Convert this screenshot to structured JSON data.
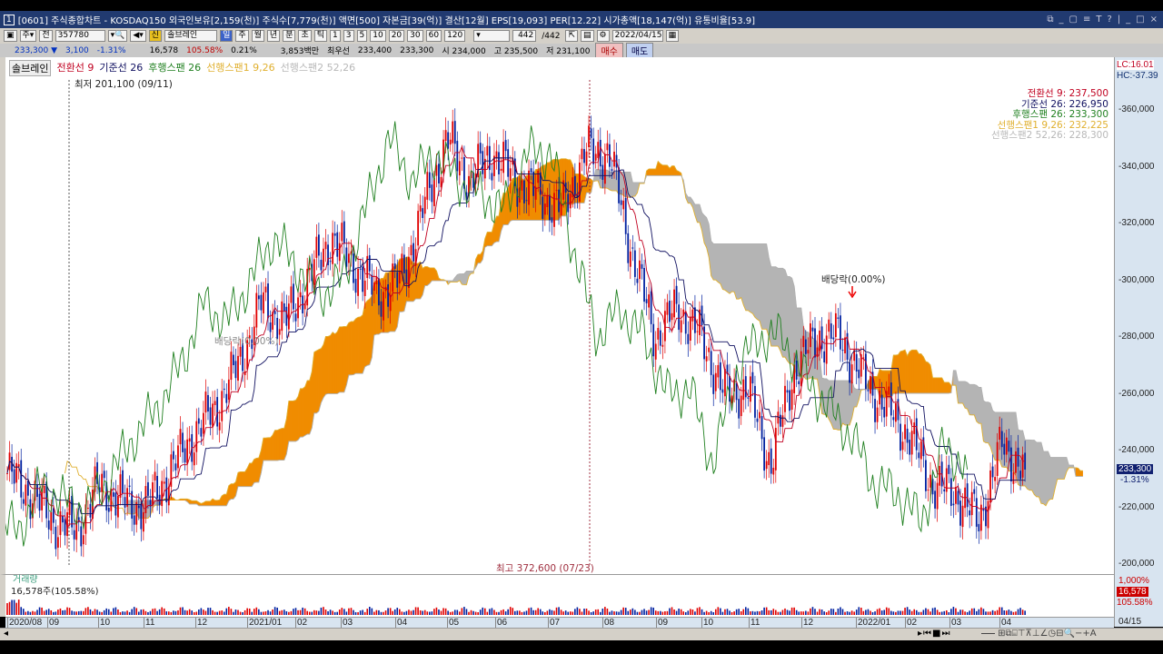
{
  "window": {
    "num": "1",
    "title": "[0601] 주식종합차트 - KOSDAQ150 외국인보유[2,159(천)] 주식수[7,779(천)] 액면[500] 자본금[39(억)] 결산[12월] EPS[19,093] PER[12.22] 시가총액[18,147(억)] 유통비율[53.9]",
    "controls": [
      "⧉",
      "_",
      "▢",
      "≡",
      "T",
      "?",
      "|",
      "_",
      "□",
      "×"
    ]
  },
  "toolbar": {
    "code": "357780",
    "indicator": "솔브레인",
    "periods": [
      "일",
      "주",
      "월",
      "년",
      "분",
      "초",
      "틱"
    ],
    "nums": [
      "1",
      "3",
      "5",
      "10",
      "20",
      "30",
      "60",
      "120"
    ],
    "count": "442",
    "total": "/442",
    "date": "2022/04/15"
  },
  "quote": {
    "price": "233,300 ▼",
    "change": "3,100",
    "pct": "-1.31%",
    "volume": "16,578",
    "vol_pct": "105.58%",
    "turnover": "0.21%",
    "amount": "3,853백만",
    "best_label": "최우선",
    "best_ask": "233,400",
    "best_bid": "233,300",
    "open": "시 234,000",
    "high": "고 235,500",
    "low": "저 231,100",
    "buy": "매수",
    "sell": "매도"
  },
  "legend": {
    "name": "솔브레인",
    "conv": "전환선 9",
    "base": "기준선 26",
    "lag": "후행스팬 26",
    "spanA": "선행스팬1 9,26",
    "spanB": "선행스팬2 52,26"
  },
  "values": {
    "conv": "전환선 9: 237,500",
    "base": "기준선 26: 226,950",
    "lag": "후행스팬 26: 233,300",
    "spanA": "선행스팬1 9,26: 232,225",
    "spanB": "선행스팬2 52,26: 228,300"
  },
  "right": {
    "lc": "LC:16.01",
    "hc": "HC:-37.39",
    "price_tag": "233,300",
    "pct_tag": "-1.31%",
    "vol_tag": "16,578",
    "vol_pct_tag": "105.58%",
    "vol_top": "1,000%",
    "date_tag": "04/15"
  },
  "annotations": {
    "low": "최저 201,100 (09/11)",
    "high": "최고 372,600 (07/23)",
    "div1": "배당락(0.00%)",
    "div2": "배당락(0.00%)"
  },
  "volume_panel": {
    "title": "거래량",
    "value": "16,578주(105.58%)"
  },
  "colors": {
    "conv": "#c00020",
    "base": "#101060",
    "lag": "#208020",
    "spanA": "#e0b030",
    "spanB": "#b0b0b0",
    "cloud_up": "#f08c00",
    "cloud_down": "#b4b4b4",
    "up": "#e00000",
    "down": "#0020a0"
  },
  "chart_data": {
    "type": "candlestick",
    "yticks": [
      200000,
      220000,
      240000,
      260000,
      280000,
      300000,
      320000,
      340000,
      360000
    ],
    "ytick_labels": [
      "200,000",
      "220,000",
      "240,000",
      "260,000",
      "280,000",
      "300,000",
      "320,000",
      "340,000",
      "360,000"
    ],
    "ylim": [
      200000,
      360000
    ],
    "xticks": [
      "2020/08",
      "09",
      "10",
      "11",
      "12",
      "2021/01",
      "02",
      "03",
      "04",
      "05",
      "06",
      "07",
      "08",
      "09",
      "10",
      "11",
      "12",
      "2022/01",
      "02",
      "03",
      "04"
    ],
    "days": 442,
    "approx_closes": [
      232000,
      225000,
      215000,
      212000,
      228000,
      222000,
      220000,
      232000,
      245000,
      255000,
      270000,
      292000,
      285000,
      300000,
      315000,
      305000,
      295000,
      300000,
      325000,
      350000,
      335000,
      345000,
      335000,
      330000,
      325000,
      345000,
      345000,
      310000,
      280000,
      290000,
      280000,
      260000,
      262000,
      235000,
      268000,
      280000,
      280000,
      265000,
      255000,
      245000,
      228000,
      225000,
      215000,
      242000,
      233300
    ],
    "last_close": 233300,
    "low": 201100,
    "high": 372600
  }
}
